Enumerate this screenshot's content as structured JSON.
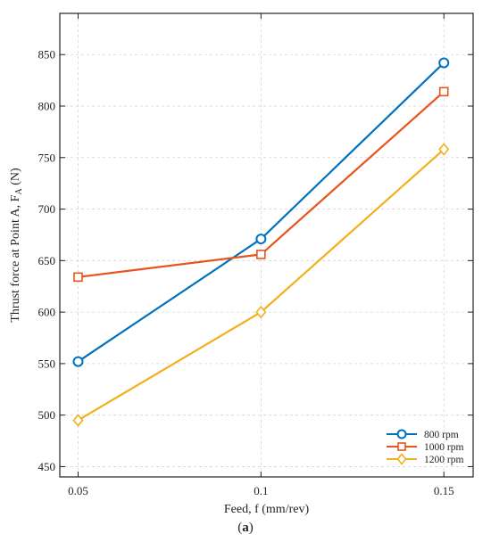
{
  "chart_data": {
    "type": "line",
    "x": [
      0.05,
      0.1,
      0.15
    ],
    "x_tick_labels": [
      "0.05",
      "0.1",
      "0.15"
    ],
    "xlim": [
      0.045,
      0.158
    ],
    "ylim": [
      440,
      890
    ],
    "y_ticks": [
      450,
      500,
      550,
      600,
      650,
      700,
      750,
      800,
      850
    ],
    "xlabel": "Feed, f (mm/rev)",
    "ylabel_main": "Thrust  force  at  Point  A,  F",
    "ylabel_sub": "A",
    "ylabel_unit": " (N)",
    "grid": true,
    "legend_position": "bottom-right",
    "series": [
      {
        "name": "800 rpm",
        "values": [
          552,
          671,
          842
        ],
        "color": "#0072bd",
        "marker": "circle"
      },
      {
        "name": "1000 rpm",
        "values": [
          634,
          656,
          814
        ],
        "color": "#e8541c",
        "marker": "square"
      },
      {
        "name": "1200 rpm",
        "values": [
          495,
          600,
          758
        ],
        "color": "#f2b01e",
        "marker": "diamond"
      }
    ]
  },
  "caption": {
    "open": "(",
    "letter": "a",
    "close": ")"
  }
}
